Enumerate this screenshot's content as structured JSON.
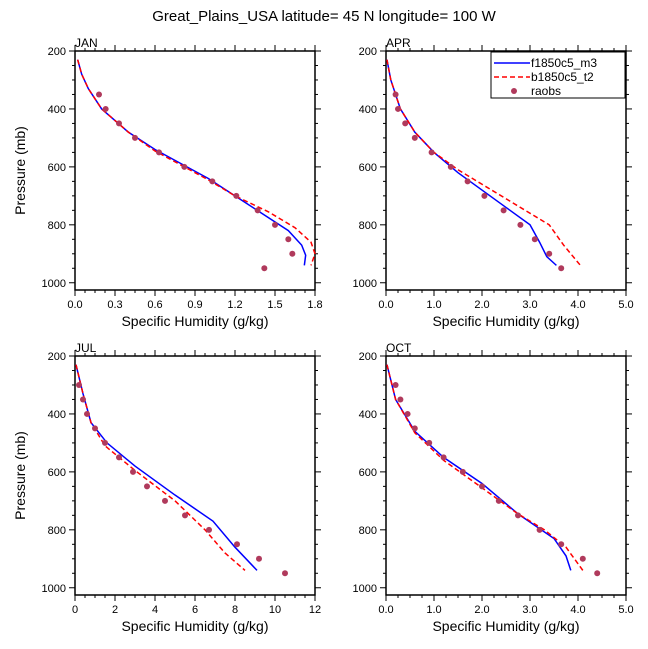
{
  "title": "Great_Plains_USA  latitude= 45 N longitude= 100 W",
  "legend": {
    "placement": "top-right of APR panel",
    "entries": [
      {
        "name": "f1850c5_m3",
        "style": "solid",
        "color": "#0000ff"
      },
      {
        "name": "b1850c5_t2",
        "style": "dashed",
        "color": "#ff0000"
      },
      {
        "name": "raobs",
        "style": "marker",
        "color": "#b03a5c"
      }
    ]
  },
  "chart_data": [
    {
      "type": "line",
      "title": "JAN",
      "xlabel": "Specific Humidity (g/kg)",
      "ylabel": "Pressure (mb)",
      "xlim": [
        0,
        1.8
      ],
      "ylim": [
        200,
        1025
      ],
      "xticks": [
        "0.0",
        "0.3",
        "0.6",
        "0.9",
        "1.2",
        "1.5",
        "1.8"
      ],
      "yticks": [
        "200",
        "400",
        "600",
        "800",
        "1000"
      ],
      "series": [
        {
          "name": "f1850c5_m3",
          "points": [
            [
              0.02,
              230
            ],
            [
              0.05,
              280
            ],
            [
              0.1,
              330
            ],
            [
              0.2,
              400
            ],
            [
              0.4,
              480
            ],
            [
              0.6,
              540
            ],
            [
              0.8,
              590
            ],
            [
              1.0,
              640
            ],
            [
              1.2,
              700
            ],
            [
              1.4,
              760
            ],
            [
              1.6,
              820
            ],
            [
              1.7,
              870
            ],
            [
              1.73,
              905
            ],
            [
              1.72,
              940
            ]
          ]
        },
        {
          "name": "b1850c5_t2",
          "points": [
            [
              0.02,
              230
            ],
            [
              0.05,
              280
            ],
            [
              0.1,
              330
            ],
            [
              0.2,
              400
            ],
            [
              0.4,
              480
            ],
            [
              0.6,
              545
            ],
            [
              0.8,
              595
            ],
            [
              1.0,
              645
            ],
            [
              1.2,
              700
            ],
            [
              1.45,
              755
            ],
            [
              1.65,
              810
            ],
            [
              1.77,
              860
            ],
            [
              1.8,
              900
            ],
            [
              1.77,
              940
            ]
          ]
        },
        {
          "name": "raobs",
          "points": [
            [
              0.18,
              350
            ],
            [
              0.23,
              400
            ],
            [
              0.33,
              450
            ],
            [
              0.45,
              500
            ],
            [
              0.63,
              550
            ],
            [
              0.82,
              600
            ],
            [
              1.03,
              650
            ],
            [
              1.21,
              700
            ],
            [
              1.37,
              750
            ],
            [
              1.5,
              800
            ],
            [
              1.6,
              850
            ],
            [
              1.63,
              900
            ],
            [
              1.42,
              950
            ]
          ]
        }
      ]
    },
    {
      "type": "line",
      "title": "APR",
      "xlabel": "Specific Humidity (g/kg)",
      "ylabel": "Pressure (mb)",
      "xlim": [
        0,
        5
      ],
      "ylim": [
        200,
        1025
      ],
      "xticks": [
        "0.0",
        "1.0",
        "2.0",
        "3.0",
        "4.0",
        "5.0"
      ],
      "yticks": [
        "200",
        "400",
        "600",
        "800",
        "1000"
      ],
      "series": [
        {
          "name": "f1850c5_m3",
          "points": [
            [
              0.02,
              230
            ],
            [
              0.1,
              300
            ],
            [
              0.3,
              400
            ],
            [
              0.6,
              480
            ],
            [
              1.0,
              550
            ],
            [
              1.5,
              620
            ],
            [
              2.0,
              680
            ],
            [
              2.5,
              740
            ],
            [
              3.0,
              800
            ],
            [
              3.2,
              860
            ],
            [
              3.35,
              910
            ],
            [
              3.55,
              940
            ]
          ]
        },
        {
          "name": "b1850c5_t2",
          "points": [
            [
              0.02,
              230
            ],
            [
              0.1,
              300
            ],
            [
              0.3,
              400
            ],
            [
              0.6,
              480
            ],
            [
              1.0,
              550
            ],
            [
              1.5,
              610
            ],
            [
              2.0,
              660
            ],
            [
              2.5,
              710
            ],
            [
              3.0,
              760
            ],
            [
              3.4,
              800
            ],
            [
              3.7,
              870
            ],
            [
              4.05,
              940
            ]
          ]
        },
        {
          "name": "raobs",
          "points": [
            [
              0.2,
              350
            ],
            [
              0.25,
              400
            ],
            [
              0.4,
              450
            ],
            [
              0.6,
              500
            ],
            [
              0.95,
              550
            ],
            [
              1.35,
              600
            ],
            [
              1.7,
              650
            ],
            [
              2.05,
              700
            ],
            [
              2.45,
              750
            ],
            [
              2.8,
              800
            ],
            [
              3.1,
              850
            ],
            [
              3.4,
              900
            ],
            [
              3.65,
              950
            ]
          ]
        }
      ]
    },
    {
      "type": "line",
      "title": "JUL",
      "xlabel": "Specific Humidity (g/kg)",
      "ylabel": "Pressure (mb)",
      "xlim": [
        0,
        12
      ],
      "ylim": [
        200,
        1025
      ],
      "xticks": [
        "0",
        "2",
        "4",
        "6",
        "8",
        "10",
        "12"
      ],
      "yticks": [
        "200",
        "400",
        "600",
        "800",
        "1000"
      ],
      "series": [
        {
          "name": "f1850c5_m3",
          "points": [
            [
              0.05,
              230
            ],
            [
              0.4,
              330
            ],
            [
              0.8,
              430
            ],
            [
              1.6,
              500
            ],
            [
              3,
              580
            ],
            [
              5,
              680
            ],
            [
              6.9,
              770
            ],
            [
              8,
              860
            ],
            [
              9.1,
              940
            ]
          ]
        },
        {
          "name": "b1850c5_t2",
          "points": [
            [
              0.05,
              230
            ],
            [
              0.4,
              330
            ],
            [
              0.8,
              430
            ],
            [
              1.5,
              510
            ],
            [
              3,
              595
            ],
            [
              5,
              700
            ],
            [
              6.5,
              800
            ],
            [
              7.5,
              880
            ],
            [
              8.5,
              940
            ]
          ]
        },
        {
          "name": "raobs",
          "points": [
            [
              0.2,
              300
            ],
            [
              0.4,
              350
            ],
            [
              0.6,
              400
            ],
            [
              1.0,
              450
            ],
            [
              1.5,
              500
            ],
            [
              2.2,
              550
            ],
            [
              2.9,
              600
            ],
            [
              3.6,
              650
            ],
            [
              4.5,
              700
            ],
            [
              5.5,
              750
            ],
            [
              6.7,
              800
            ],
            [
              8.1,
              850
            ],
            [
              9.2,
              900
            ],
            [
              10.5,
              950
            ]
          ]
        }
      ]
    },
    {
      "type": "line",
      "title": "OCT",
      "xlabel": "Specific Humidity (g/kg)",
      "ylabel": "Pressure (mb)",
      "xlim": [
        0,
        5
      ],
      "ylim": [
        200,
        1025
      ],
      "xticks": [
        "0.0",
        "1.0",
        "2.0",
        "3.0",
        "4.0",
        "5.0"
      ],
      "yticks": [
        "200",
        "400",
        "600",
        "800",
        "1000"
      ],
      "series": [
        {
          "name": "f1850c5_m3",
          "points": [
            [
              0.02,
              230
            ],
            [
              0.2,
              350
            ],
            [
              0.6,
              460
            ],
            [
              1.2,
              550
            ],
            [
              2.0,
              640
            ],
            [
              2.75,
              745
            ],
            [
              3.5,
              830
            ],
            [
              3.75,
              890
            ],
            [
              3.85,
              940
            ]
          ]
        },
        {
          "name": "b1850c5_t2",
          "points": [
            [
              0.02,
              230
            ],
            [
              0.2,
              350
            ],
            [
              0.6,
              465
            ],
            [
              1.2,
              560
            ],
            [
              2.0,
              655
            ],
            [
              2.75,
              745
            ],
            [
              3.3,
              800
            ],
            [
              3.75,
              860
            ],
            [
              4.1,
              940
            ]
          ]
        },
        {
          "name": "raobs",
          "points": [
            [
              0.2,
              300
            ],
            [
              0.3,
              350
            ],
            [
              0.45,
              400
            ],
            [
              0.6,
              450
            ],
            [
              0.9,
              500
            ],
            [
              1.2,
              550
            ],
            [
              1.6,
              600
            ],
            [
              2.0,
              650
            ],
            [
              2.35,
              700
            ],
            [
              2.75,
              750
            ],
            [
              3.2,
              800
            ],
            [
              3.65,
              850
            ],
            [
              4.1,
              900
            ],
            [
              4.4,
              950
            ]
          ]
        }
      ]
    }
  ]
}
